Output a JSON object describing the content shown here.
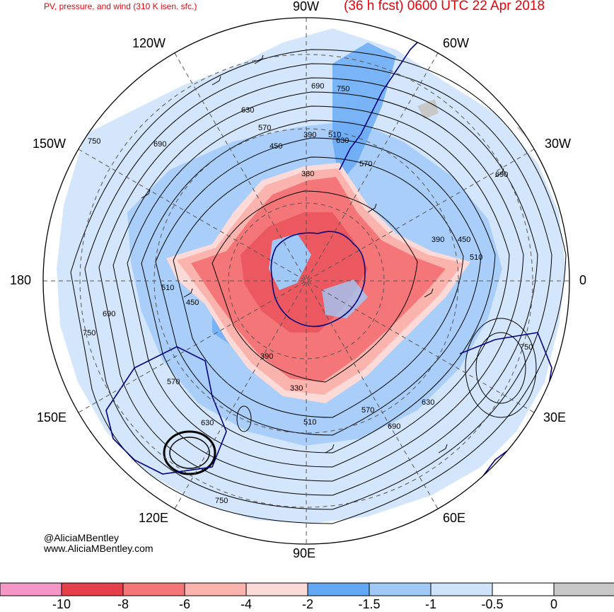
{
  "header": {
    "left_title": "PV, pressure, and wind (310 K isen. sfc.)",
    "right_title": "(36 h fcst) 0600 UTC 22 Apr 2018"
  },
  "longitude_labels": {
    "w90": "90W",
    "w60": "60W",
    "w30": "30W",
    "zero": "0",
    "e30": "30E",
    "e60": "60E",
    "e90": "90E",
    "e120": "120E",
    "e150": "150E",
    "l180": "180",
    "w150": "150W",
    "w120": "120W"
  },
  "pressure_contour_labels": [
    "330",
    "380",
    "390",
    "390",
    "390",
    "450",
    "450",
    "450",
    "510",
    "510",
    "510",
    "510",
    "570",
    "570",
    "570",
    "570",
    "630",
    "630",
    "630",
    "630",
    "690",
    "690",
    "690",
    "690",
    "690",
    "750",
    "750",
    "750",
    "750",
    "750"
  ],
  "credit": {
    "handle": "@AliciaMBentley",
    "website": "www.AliciaMBentley.com"
  },
  "colorbar": {
    "bins": [
      {
        "color": "#f598c8"
      },
      {
        "color": "#e5404a"
      },
      {
        "color": "#f47678"
      },
      {
        "color": "#fbb3ae"
      },
      {
        "color": "#fcdad7"
      },
      {
        "color": "#62a8f5"
      },
      {
        "color": "#a1c9f8"
      },
      {
        "color": "#cfe3fb"
      },
      {
        "color": "#ffffff"
      },
      {
        "color": "#c8c8c8"
      }
    ],
    "tick_labels": [
      "-10",
      "-8",
      "-6",
      "-4",
      "-2",
      "-1.5",
      "-1",
      "-0.5",
      "0"
    ]
  },
  "colors": {
    "title": "#e8000b",
    "coastline": "#000080",
    "contour": "#000000",
    "grid": "#555555"
  }
}
